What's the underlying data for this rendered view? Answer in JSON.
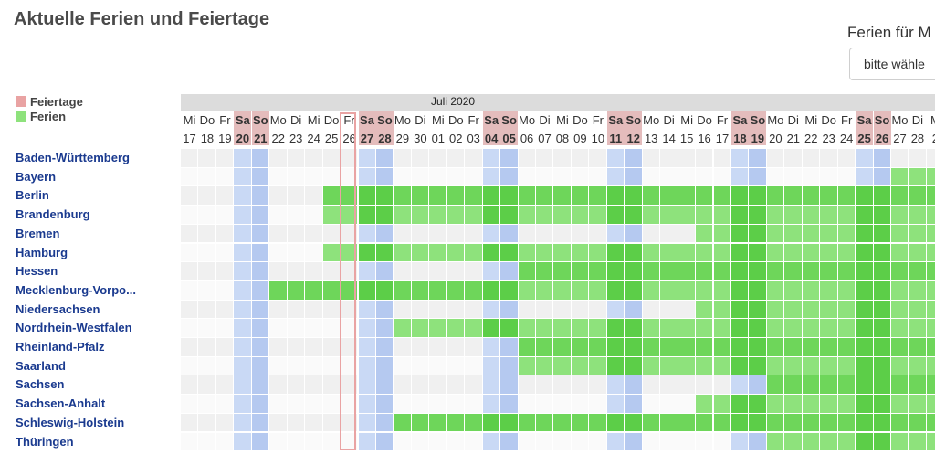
{
  "title": "Aktuelle Ferien und Feiertage",
  "selector": {
    "label": "Ferien für M",
    "value": "bitte wähle"
  },
  "legend": [
    {
      "label": "Feiertage",
      "color": "#e9a3a3"
    },
    {
      "label": "Ferien",
      "color": "#8ee27c"
    }
  ],
  "month_label": "Juli 2020",
  "days": [
    [
      "Mi",
      "17"
    ],
    [
      "Do",
      "18"
    ],
    [
      "Fr",
      "19"
    ],
    [
      "Sa",
      "20"
    ],
    [
      "So",
      "21"
    ],
    [
      "Mo",
      "22"
    ],
    [
      "Di",
      "23"
    ],
    [
      "Mi",
      "24"
    ],
    [
      "Do",
      "25"
    ],
    [
      "Fr",
      "26"
    ],
    [
      "Sa",
      "27"
    ],
    [
      "So",
      "28"
    ],
    [
      "Mo",
      "29"
    ],
    [
      "Di",
      "30"
    ],
    [
      "Mi",
      "01"
    ],
    [
      "Do",
      "02"
    ],
    [
      "Fr",
      "03"
    ],
    [
      "Sa",
      "04"
    ],
    [
      "So",
      "05"
    ],
    [
      "Mo",
      "06"
    ],
    [
      "Di",
      "07"
    ],
    [
      "Mi",
      "08"
    ],
    [
      "Do",
      "09"
    ],
    [
      "Fr",
      "10"
    ],
    [
      "Sa",
      "11"
    ],
    [
      "So",
      "12"
    ],
    [
      "Mo",
      "13"
    ],
    [
      "Di",
      "14"
    ],
    [
      "Mi",
      "15"
    ],
    [
      "Do",
      "16"
    ],
    [
      "Fr",
      "17"
    ],
    [
      "Sa",
      "18"
    ],
    [
      "So",
      "19"
    ],
    [
      "Mo",
      "20"
    ],
    [
      "Di",
      "21"
    ],
    [
      "Mi",
      "22"
    ],
    [
      "Do",
      "23"
    ],
    [
      "Fr",
      "24"
    ],
    [
      "Sa",
      "25"
    ],
    [
      "So",
      "26"
    ],
    [
      "Mo",
      "27"
    ],
    [
      "Di",
      "28"
    ],
    [
      "M",
      "2"
    ]
  ],
  "states": [
    {
      "name": "Baden-Württemberg",
      "start": null
    },
    {
      "name": "Bayern",
      "start": 40
    },
    {
      "name": "Berlin",
      "start": 8
    },
    {
      "name": "Brandenburg",
      "start": 8
    },
    {
      "name": "Bremen",
      "start": 29
    },
    {
      "name": "Hamburg",
      "start": 8
    },
    {
      "name": "Hessen",
      "start": 19
    },
    {
      "name": "Mecklenburg-Vorpo...",
      "start": 5
    },
    {
      "name": "Niedersachsen",
      "start": 29
    },
    {
      "name": "Nordrhein-Westfalen",
      "start": 12
    },
    {
      "name": "Rheinland-Pfalz",
      "start": 19
    },
    {
      "name": "Saarland",
      "start": 19
    },
    {
      "name": "Sachsen",
      "start": 33
    },
    {
      "name": "Sachsen-Anhalt",
      "start": 29
    },
    {
      "name": "Schleswig-Holstein",
      "start": 12
    },
    {
      "name": "Thüringen",
      "start": 33
    }
  ],
  "colors": {
    "holiday": "#8ee27c",
    "holiday_weekend": "#6ed65a",
    "holiday_dark": "#5cce48",
    "weekend_blue": "#c9d9f5",
    "weekend_blue_dark": "#b5c9f0",
    "row_odd": "#f0f0f0",
    "row_even": "#fafafa",
    "today_outline": "#e9a3a3"
  }
}
